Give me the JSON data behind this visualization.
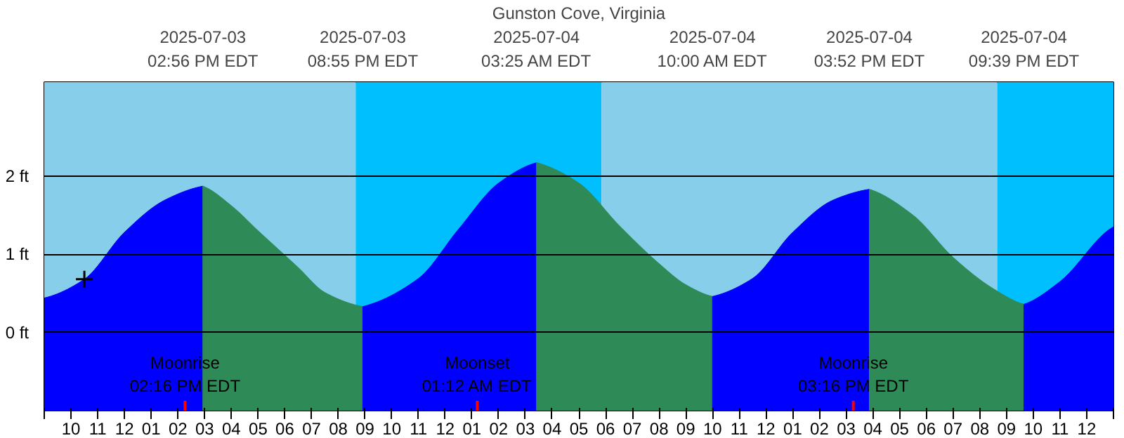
{
  "chart_data": {
    "type": "area",
    "title": "Gunston Cove, Virginia",
    "xlim": [
      "2025-07-03T09:00",
      "2025-07-05T01:00"
    ],
    "ylim": [
      -1,
      3.2
    ],
    "xticks": [
      {
        "value": "2025-07-03T09:00",
        "label": null
      },
      {
        "value": "2025-07-03T10:00",
        "label": "10"
      },
      {
        "value": "2025-07-03T11:00",
        "label": "11"
      },
      {
        "value": "2025-07-03T12:00",
        "label": "12"
      },
      {
        "value": "2025-07-03T13:00",
        "label": "01"
      },
      {
        "value": "2025-07-03T14:00",
        "label": "02"
      },
      {
        "value": "2025-07-03T15:00",
        "label": "03"
      },
      {
        "value": "2025-07-03T16:00",
        "label": "04"
      },
      {
        "value": "2025-07-03T17:00",
        "label": "05"
      },
      {
        "value": "2025-07-03T18:00",
        "label": "06"
      },
      {
        "value": "2025-07-03T19:00",
        "label": "07"
      },
      {
        "value": "2025-07-03T20:00",
        "label": "08"
      },
      {
        "value": "2025-07-03T21:00",
        "label": "09"
      },
      {
        "value": "2025-07-03T22:00",
        "label": "10"
      },
      {
        "value": "2025-07-03T23:00",
        "label": "11"
      },
      {
        "value": "2025-07-04T00:00",
        "label": "12"
      },
      {
        "value": "2025-07-04T01:00",
        "label": "01"
      },
      {
        "value": "2025-07-04T02:00",
        "label": "02"
      },
      {
        "value": "2025-07-04T03:00",
        "label": "03"
      },
      {
        "value": "2025-07-04T04:00",
        "label": "04"
      },
      {
        "value": "2025-07-04T05:00",
        "label": "05"
      },
      {
        "value": "2025-07-04T06:00",
        "label": "06"
      },
      {
        "value": "2025-07-04T07:00",
        "label": "07"
      },
      {
        "value": "2025-07-04T08:00",
        "label": "08"
      },
      {
        "value": "2025-07-04T09:00",
        "label": "09"
      },
      {
        "value": "2025-07-04T10:00",
        "label": "10"
      },
      {
        "value": "2025-07-04T11:00",
        "label": "11"
      },
      {
        "value": "2025-07-04T12:00",
        "label": "12"
      },
      {
        "value": "2025-07-04T13:00",
        "label": "01"
      },
      {
        "value": "2025-07-04T14:00",
        "label": "02"
      },
      {
        "value": "2025-07-04T15:00",
        "label": "03"
      },
      {
        "value": "2025-07-04T16:00",
        "label": "04"
      },
      {
        "value": "2025-07-04T17:00",
        "label": "05"
      },
      {
        "value": "2025-07-04T18:00",
        "label": "06"
      },
      {
        "value": "2025-07-04T19:00",
        "label": "07"
      },
      {
        "value": "2025-07-04T20:00",
        "label": "08"
      },
      {
        "value": "2025-07-04T21:00",
        "label": "09"
      },
      {
        "value": "2025-07-04T22:00",
        "label": "10"
      },
      {
        "value": "2025-07-04T23:00",
        "label": "11"
      },
      {
        "value": "2025-07-05T00:00",
        "label": "12"
      },
      {
        "value": "2025-07-05T01:00",
        "label": null
      }
    ],
    "x2lim": [
      "2025-07-03T09:00",
      "2025-07-05T01:00"
    ],
    "x2ticks": [
      {
        "value": "2025-07-03T14:56",
        "label": "2025-07-03\n02:56 PM EDT"
      },
      {
        "value": "2025-07-03T20:55",
        "label": "2025-07-03\n08:55 PM EDT"
      },
      {
        "value": "2025-07-04T03:25",
        "label": "2025-07-04\n03:25 AM EDT"
      },
      {
        "value": "2025-07-04T10:00",
        "label": "2025-07-04\n10:00 AM EDT"
      },
      {
        "value": "2025-07-04T15:52",
        "label": "2025-07-04\n03:52 PM EDT"
      },
      {
        "value": "2025-07-04T21:39",
        "label": "2025-07-04\n09:39 PM EDT"
      }
    ],
    "yticks": [
      {
        "value": 0,
        "label": "0 ft"
      },
      {
        "value": 1,
        "label": "1 ft"
      },
      {
        "value": 2,
        "label": "2 ft"
      }
    ],
    "grid": "y",
    "bands": [
      {
        "axis": "x",
        "from": "2025-07-03T09:00",
        "to": "2025-07-03T20:39",
        "color": "#87ceeb"
      },
      {
        "axis": "x",
        "from": "2025-07-03T20:39",
        "to": "2025-07-04T05:51",
        "color": "#00bfff"
      },
      {
        "axis": "x",
        "from": "2025-07-04T05:51",
        "to": "2025-07-04T20:39",
        "color": "#87ceeb"
      },
      {
        "axis": "x",
        "from": "2025-07-04T20:39",
        "to": "2025-07-05T01:00",
        "color": "#00bfff"
      }
    ],
    "ref_lines": [
      {
        "axis": "x",
        "value": "2025-07-03T14:16",
        "label": "Moonrise\n02:16 PM EDT",
        "color": "#ff0000"
      },
      {
        "axis": "x",
        "value": "2025-07-04T01:12",
        "label": "Moonset\n01:12 AM EDT",
        "color": "#ff0000"
      },
      {
        "axis": "x",
        "value": "2025-07-04T15:16",
        "label": "Moonrise\n03:16 PM EDT",
        "color": "#ff0000"
      }
    ],
    "series": [
      {
        "color": "#0000ff",
        "x": [
          "2025-07-03T09:00",
          "2025-07-03T10:30",
          "2025-07-03T12:00",
          "2025-07-03T13:30",
          "2025-07-03T14:56"
        ],
        "values": [
          0.44,
          0.68,
          1.28,
          1.69,
          1.87
        ]
      },
      {
        "color": "#2e8b57",
        "x": [
          "2025-07-03T14:56",
          "2025-07-03T16:00",
          "2025-07-03T17:00",
          "2025-07-03T18:30",
          "2025-07-03T19:30",
          "2025-07-03T20:55"
        ],
        "values": [
          1.87,
          1.62,
          1.3,
          0.83,
          0.51,
          0.33
        ]
      },
      {
        "color": "#0000ff",
        "x": [
          "2025-07-03T20:55",
          "2025-07-03T23:00",
          "2025-07-04T00:30",
          "2025-07-04T02:00",
          "2025-07-04T03:25"
        ],
        "values": [
          0.33,
          0.69,
          1.32,
          1.91,
          2.17
        ]
      },
      {
        "color": "#2e8b57",
        "x": [
          "2025-07-04T03:25",
          "2025-07-04T05:00",
          "2025-07-04T06:30",
          "2025-07-04T08:00",
          "2025-07-04T09:00",
          "2025-07-04T10:00"
        ],
        "values": [
          2.17,
          1.91,
          1.37,
          0.88,
          0.61,
          0.46
        ]
      },
      {
        "color": "#0000ff",
        "x": [
          "2025-07-04T10:00",
          "2025-07-04T11:30",
          "2025-07-04T13:00",
          "2025-07-04T14:30",
          "2025-07-04T15:52"
        ],
        "values": [
          0.46,
          0.69,
          1.28,
          1.69,
          1.83
        ]
      },
      {
        "color": "#2e8b57",
        "x": [
          "2025-07-04T15:52",
          "2025-07-04T17:30",
          "2025-07-04T19:00",
          "2025-07-04T20:30",
          "2025-07-04T21:39"
        ],
        "values": [
          1.83,
          1.5,
          0.96,
          0.56,
          0.36
        ]
      },
      {
        "color": "#0000ff",
        "x": [
          "2025-07-04T21:39",
          "2025-07-04T23:00",
          "2025-07-05T01:00"
        ],
        "values": [
          0.36,
          0.65,
          1.35
        ]
      },
      {
        "type": "scatter",
        "marker": "cross",
        "color": "#000000",
        "x": [
          "2025-07-03T10:30"
        ],
        "values": [
          0.68
        ]
      }
    ]
  }
}
